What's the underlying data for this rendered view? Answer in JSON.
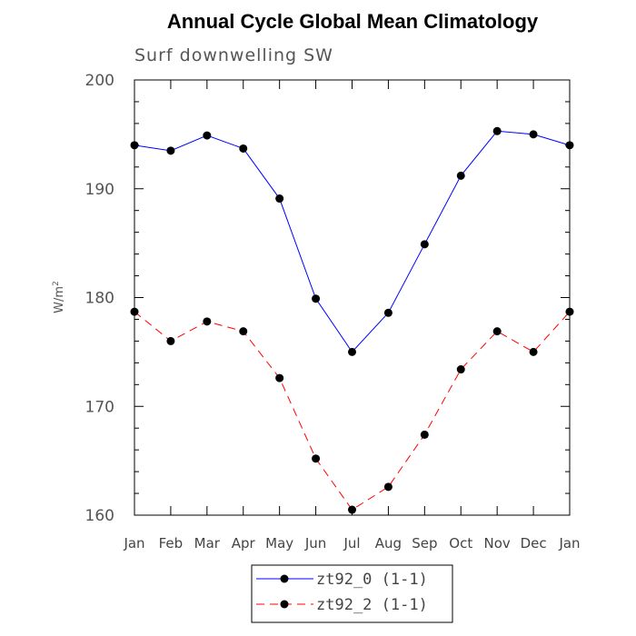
{
  "chart_data": {
    "type": "line",
    "title": "Annual Cycle Global Mean Climatology",
    "subtitle": "Surf downwelling SW",
    "ylabel": "W/m",
    "ylabel_sup": "2",
    "xlabel": "",
    "categories": [
      "Jan",
      "Feb",
      "Mar",
      "Apr",
      "May",
      "Jun",
      "Jul",
      "Aug",
      "Sep",
      "Oct",
      "Nov",
      "Dec",
      "Jan"
    ],
    "ylim": [
      160,
      200
    ],
    "yticks": [
      160,
      170,
      180,
      190,
      200
    ],
    "grid": false,
    "legend_position": "bottom",
    "series": [
      {
        "name": "zt92_0 (1-1)",
        "color": "#0000ff",
        "style": "solid",
        "marker": "circle",
        "values": [
          194.0,
          193.5,
          194.9,
          193.7,
          189.1,
          179.9,
          175.0,
          178.6,
          184.9,
          191.2,
          195.3,
          195.0,
          194.0
        ]
      },
      {
        "name": "zt92_2 (1-1)",
        "color": "#ff0000",
        "style": "dashed",
        "marker": "circle",
        "values": [
          178.7,
          176.0,
          177.8,
          176.9,
          172.6,
          165.2,
          160.5,
          162.6,
          167.4,
          173.4,
          176.9,
          175.0,
          178.7
        ]
      }
    ]
  }
}
